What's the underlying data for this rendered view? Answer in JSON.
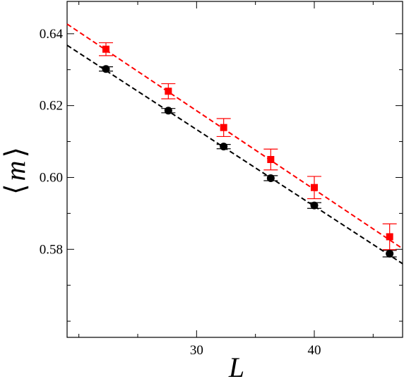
{
  "chart_data": {
    "type": "scatter",
    "xlabel": "L",
    "ylabel": {
      "left_bracket": "⟨",
      "symbol": "m",
      "right_bracket": "⟩"
    },
    "xlim": [
      19.0,
      47.5
    ],
    "ylim": [
      0.5555,
      0.649
    ],
    "xticks": [
      {
        "value": 30,
        "label": "30"
      },
      {
        "value": 40,
        "label": "40"
      }
    ],
    "yticks": [
      {
        "value": 0.58,
        "label": "0.58"
      },
      {
        "value": 0.6,
        "label": "0.60"
      },
      {
        "value": 0.62,
        "label": "0.62"
      },
      {
        "value": 0.64,
        "label": "0.64"
      }
    ],
    "grid": false,
    "legend": false,
    "series": [
      {
        "color": "#000000",
        "marker": "circle",
        "points": [
          {
            "x": 22.3,
            "y": 0.6302,
            "err": 0.0006
          },
          {
            "x": 27.6,
            "y": 0.6186,
            "err": 0.0006
          },
          {
            "x": 32.3,
            "y": 0.6086,
            "err": 0.0006
          },
          {
            "x": 36.3,
            "y": 0.5998,
            "err": 0.0007
          },
          {
            "x": 40.0,
            "y": 0.5922,
            "err": 0.0008
          },
          {
            "x": 46.4,
            "y": 0.5788,
            "err": 0.0009
          }
        ],
        "fit": {
          "style": "dashed",
          "x": [
            19.0,
            47.5
          ],
          "y": [
            0.6368,
            0.576
          ]
        }
      },
      {
        "color": "#ff0000",
        "marker": "square",
        "points": [
          {
            "x": 22.3,
            "y": 0.6357,
            "err": 0.0018
          },
          {
            "x": 27.6,
            "y": 0.624,
            "err": 0.0021
          },
          {
            "x": 32.3,
            "y": 0.6139,
            "err": 0.0025
          },
          {
            "x": 36.3,
            "y": 0.605,
            "err": 0.0029
          },
          {
            "x": 40.0,
            "y": 0.5972,
            "err": 0.0031
          },
          {
            "x": 46.4,
            "y": 0.5835,
            "err": 0.0036
          }
        ],
        "fit": {
          "style": "dashed",
          "x": [
            19.0,
            47.5
          ],
          "y": [
            0.6427,
            0.5802
          ]
        }
      }
    ]
  }
}
